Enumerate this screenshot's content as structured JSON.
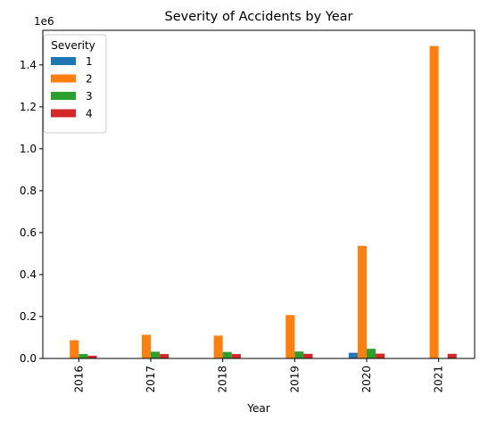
{
  "chart_data": {
    "type": "bar",
    "title": "Severity of Accidents by Year",
    "xlabel": "Year",
    "ylabel": "",
    "y_offset_label": "1e6",
    "ylim": [
      0,
      1.565
    ],
    "yticks": [
      0.0,
      0.2,
      0.4,
      0.6,
      0.8,
      1.0,
      1.2,
      1.4
    ],
    "ytick_labels": [
      "0.0",
      "0.2",
      "0.4",
      "0.6",
      "0.8",
      "1.0",
      "1.2",
      "1.4"
    ],
    "categories": [
      "2016",
      "2017",
      "2018",
      "2019",
      "2020",
      "2021"
    ],
    "legend": {
      "title": "Severity",
      "placement": "top-left"
    },
    "grid": false,
    "series": [
      {
        "name": "1",
        "color": "#1f77b4",
        "values": [
          0.0,
          0.0,
          0.0,
          0.0,
          0.027,
          0.0
        ]
      },
      {
        "name": "2",
        "color": "#ff7f0e",
        "values": [
          0.087,
          0.113,
          0.109,
          0.207,
          0.537,
          1.49
        ]
      },
      {
        "name": "3",
        "color": "#2ca02c",
        "values": [
          0.021,
          0.032,
          0.031,
          0.033,
          0.046,
          0.002
        ]
      },
      {
        "name": "4",
        "color": "#d62728",
        "values": [
          0.013,
          0.021,
          0.021,
          0.022,
          0.023,
          0.022
        ]
      }
    ]
  }
}
